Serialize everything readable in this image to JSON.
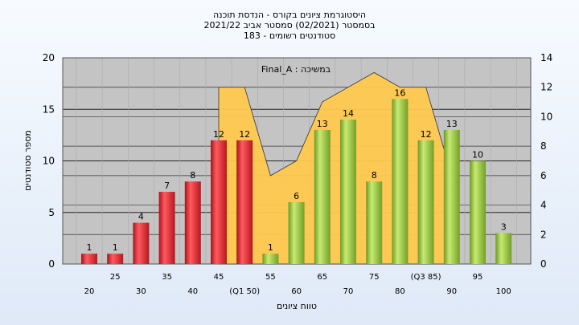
{
  "title_lines": [
    "היסטוגרמת ציונים בקורס - הנדסת תוכנה",
    "בסמסטר  (02/2021)  סמסטר אביב 2021/22",
    "סטודנטים רשומים - 183"
  ],
  "legend": "Final_A : במשיכה",
  "colors": {
    "red": "#e8323a",
    "green": "#9ccc44",
    "area": "#ffc94f",
    "plot_bg": "#c4c4c4"
  },
  "chart_data": {
    "type": "bar",
    "categories": [
      "20",
      "25",
      "30",
      "35",
      "40",
      "45",
      "(Q1 50)",
      "55",
      "60",
      "65",
      "70",
      "75",
      "80",
      "(Q3 85)",
      "90",
      "95",
      "100"
    ],
    "values": [
      1,
      1,
      4,
      7,
      8,
      12,
      12,
      1,
      6,
      13,
      14,
      8,
      16,
      12,
      13,
      10,
      3
    ],
    "bar_colors": [
      "red",
      "red",
      "red",
      "red",
      "red",
      "red",
      "red",
      "green",
      "green",
      "green",
      "green",
      "green",
      "green",
      "green",
      "green",
      "green",
      "green"
    ],
    "area_series": {
      "axis": "right",
      "points": [
        [
          "45",
          12
        ],
        [
          "(Q1 50)",
          12
        ],
        [
          "55",
          6
        ],
        [
          "60",
          7
        ],
        [
          "65",
          11
        ],
        [
          "70",
          12
        ],
        [
          "75",
          13
        ],
        [
          "80",
          12
        ],
        [
          "(Q3 85)",
          12
        ],
        [
          "90",
          6
        ]
      ]
    },
    "xlabel": "טווח ציונים",
    "ylabel": "מספר סטודנטים",
    "ylim": [
      0,
      20
    ],
    "yticks": [
      0,
      5,
      10,
      15,
      20
    ],
    "y2lim": [
      0,
      14
    ],
    "y2ticks": [
      0,
      2,
      4,
      6,
      8,
      10,
      12,
      14
    ],
    "grid": true
  }
}
